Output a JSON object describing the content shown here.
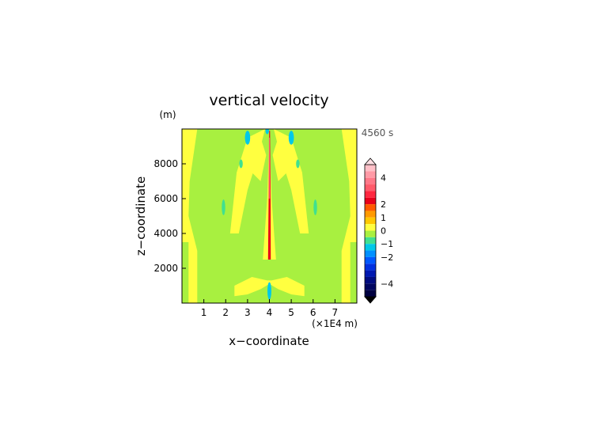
{
  "chart_data": {
    "type": "heatmap",
    "title": "vertical velocity",
    "xlabel": "x−coordinate",
    "ylabel": "z−coordinate",
    "x_unit": "(×1E4 m)",
    "y_unit": "(m)",
    "time_label": "4560 s",
    "xlim": [
      0,
      8
    ],
    "ylim": [
      0,
      10000
    ],
    "x_ticks": [
      "1",
      "2",
      "3",
      "4",
      "5",
      "6",
      "7"
    ],
    "y_ticks": [
      "2000",
      "4000",
      "6000",
      "8000"
    ],
    "colorbar": {
      "range": [
        -5,
        5
      ],
      "tick_labels": [
        "4",
        "2",
        "1",
        "0",
        "−1",
        "−2",
        "−4"
      ],
      "tick_values": [
        4,
        2,
        1,
        0,
        -1,
        -2,
        -4
      ],
      "levels": [
        {
          "lo": 4.5,
          "hi": 5,
          "color": "#ffc0c8"
        },
        {
          "lo": 4,
          "hi": 4.5,
          "color": "#ff9aa6"
        },
        {
          "lo": 3.5,
          "hi": 4,
          "color": "#ff7888"
        },
        {
          "lo": 3,
          "hi": 3.5,
          "color": "#ff5a6a"
        },
        {
          "lo": 2.5,
          "hi": 3,
          "color": "#ff2840"
        },
        {
          "lo": 2,
          "hi": 2.5,
          "color": "#e8001a"
        },
        {
          "lo": 1.5,
          "hi": 2,
          "color": "#ff5a00"
        },
        {
          "lo": 1,
          "hi": 1.5,
          "color": "#ff9a00"
        },
        {
          "lo": 0.5,
          "hi": 1,
          "color": "#ffc800"
        },
        {
          "lo": 0,
          "hi": 0.5,
          "color": "#ffff40"
        },
        {
          "lo": -0.5,
          "hi": 0,
          "color": "#a8f040"
        },
        {
          "lo": -1,
          "hi": -0.5,
          "color": "#40e090"
        },
        {
          "lo": -1.5,
          "hi": -1,
          "color": "#00c8e8"
        },
        {
          "lo": -2,
          "hi": -1.5,
          "color": "#0090ff"
        },
        {
          "lo": -2.5,
          "hi": -2,
          "color": "#0058ff"
        },
        {
          "lo": -3,
          "hi": -2.5,
          "color": "#0030e0"
        },
        {
          "lo": -3.5,
          "hi": -3,
          "color": "#0018b0"
        },
        {
          "lo": -4,
          "hi": -3.5,
          "color": "#000c80"
        },
        {
          "lo": -4.5,
          "hi": -4,
          "color": "#000660"
        },
        {
          "lo": -5,
          "hi": -4.5,
          "color": "#000040"
        }
      ],
      "over_color": "#ffe0e4",
      "under_color": "#000000"
    },
    "colors": {
      "background_positive": "#ffff40",
      "negative_weak": "#a8f040",
      "positive_strong": "#e8001a",
      "negative_moderate": "#00c8e8"
    },
    "field_regions": [
      {
        "value": 0.3,
        "shape": "poly",
        "points": [
          [
            0,
            0
          ],
          [
            0.7,
            0
          ],
          [
            0.7,
            3000
          ],
          [
            0.3,
            5000
          ],
          [
            0.35,
            7000
          ],
          [
            0.7,
            10000
          ],
          [
            0,
            10000
          ]
        ]
      },
      {
        "value": 0.3,
        "shape": "poly",
        "points": [
          [
            8,
            0
          ],
          [
            7.3,
            0
          ],
          [
            7.3,
            3000
          ],
          [
            7.7,
            5000
          ],
          [
            7.65,
            7000
          ],
          [
            7.3,
            10000
          ],
          [
            8,
            10000
          ]
        ]
      },
      {
        "value": -0.3,
        "shape": "poly",
        "points": [
          [
            0,
            0
          ],
          [
            0.3,
            0
          ],
          [
            0.3,
            3500
          ],
          [
            0,
            3500
          ]
        ]
      },
      {
        "value": -0.3,
        "shape": "poly",
        "points": [
          [
            8,
            0
          ],
          [
            7.7,
            0
          ],
          [
            7.7,
            3500
          ],
          [
            8,
            3500
          ]
        ]
      },
      {
        "value": 0.3,
        "shape": "poly",
        "points": [
          [
            2.4,
            1000
          ],
          [
            3.2,
            1500
          ],
          [
            3.9,
            1300
          ],
          [
            4.1,
            1300
          ],
          [
            4.8,
            1500
          ],
          [
            5.6,
            1000
          ],
          [
            5.6,
            400
          ],
          [
            5.0,
            500
          ],
          [
            4.4,
            800
          ],
          [
            4.0,
            1100
          ],
          [
            3.6,
            800
          ],
          [
            3.0,
            500
          ],
          [
            2.4,
            400
          ]
        ]
      },
      {
        "value": 0.3,
        "shape": "poly",
        "points": [
          [
            2.2,
            4000
          ],
          [
            2.5,
            7500
          ],
          [
            3.0,
            9500
          ],
          [
            3.8,
            10000
          ],
          [
            3.5,
            8500
          ],
          [
            3.0,
            6500
          ],
          [
            2.6,
            4000
          ]
        ]
      },
      {
        "value": 0.3,
        "shape": "poly",
        "points": [
          [
            5.8,
            4000
          ],
          [
            5.5,
            7500
          ],
          [
            5.0,
            9500
          ],
          [
            4.2,
            10000
          ],
          [
            4.5,
            8500
          ],
          [
            5.0,
            6500
          ],
          [
            5.4,
            4000
          ]
        ]
      },
      {
        "value": 0.3,
        "shape": "poly",
        "points": [
          [
            3.7,
            2500
          ],
          [
            3.9,
            6000
          ],
          [
            4.0,
            9800
          ],
          [
            4.1,
            6000
          ],
          [
            4.3,
            2500
          ]
        ]
      },
      {
        "value": 0.3,
        "shape": "poly",
        "points": [
          [
            3.2,
            7500
          ],
          [
            3.6,
            9500
          ],
          [
            3.85,
            8500
          ],
          [
            3.6,
            7000
          ]
        ]
      },
      {
        "value": 0.3,
        "shape": "poly",
        "points": [
          [
            4.8,
            7500
          ],
          [
            4.4,
            9500
          ],
          [
            4.15,
            8500
          ],
          [
            4.4,
            7000
          ]
        ]
      },
      {
        "value": 2.2,
        "shape": "poly",
        "points": [
          [
            3.94,
            2500
          ],
          [
            3.97,
            7000
          ],
          [
            3.99,
            9900
          ],
          [
            4.03,
            9900
          ],
          [
            4.05,
            7000
          ],
          [
            4.06,
            2500
          ]
        ]
      },
      {
        "value": 3.2,
        "shape": "poly",
        "points": [
          [
            3.97,
            6000
          ],
          [
            3.98,
            9500
          ],
          [
            4.02,
            9500
          ],
          [
            4.03,
            6000
          ]
        ]
      },
      {
        "value": -1.2,
        "shape": "ellipse",
        "cx": 3.0,
        "cy": 9500,
        "rx": 0.12,
        "ry": 400
      },
      {
        "value": -1.2,
        "shape": "ellipse",
        "cx": 5.0,
        "cy": 9500,
        "rx": 0.12,
        "ry": 400
      },
      {
        "value": -0.8,
        "shape": "ellipse",
        "cx": 2.7,
        "cy": 8000,
        "rx": 0.08,
        "ry": 250
      },
      {
        "value": -0.8,
        "shape": "ellipse",
        "cx": 5.3,
        "cy": 8000,
        "rx": 0.08,
        "ry": 250
      },
      {
        "value": -0.8,
        "shape": "ellipse",
        "cx": 1.9,
        "cy": 5500,
        "rx": 0.08,
        "ry": 450
      },
      {
        "value": -0.8,
        "shape": "ellipse",
        "cx": 6.1,
        "cy": 5500,
        "rx": 0.08,
        "ry": 450
      },
      {
        "value": -1.2,
        "shape": "ellipse",
        "cx": 4.0,
        "cy": 700,
        "rx": 0.09,
        "ry": 500
      },
      {
        "value": -1.2,
        "shape": "ellipse",
        "cx": 3.9,
        "cy": 9900,
        "rx": 0.08,
        "ry": 200
      }
    ]
  }
}
